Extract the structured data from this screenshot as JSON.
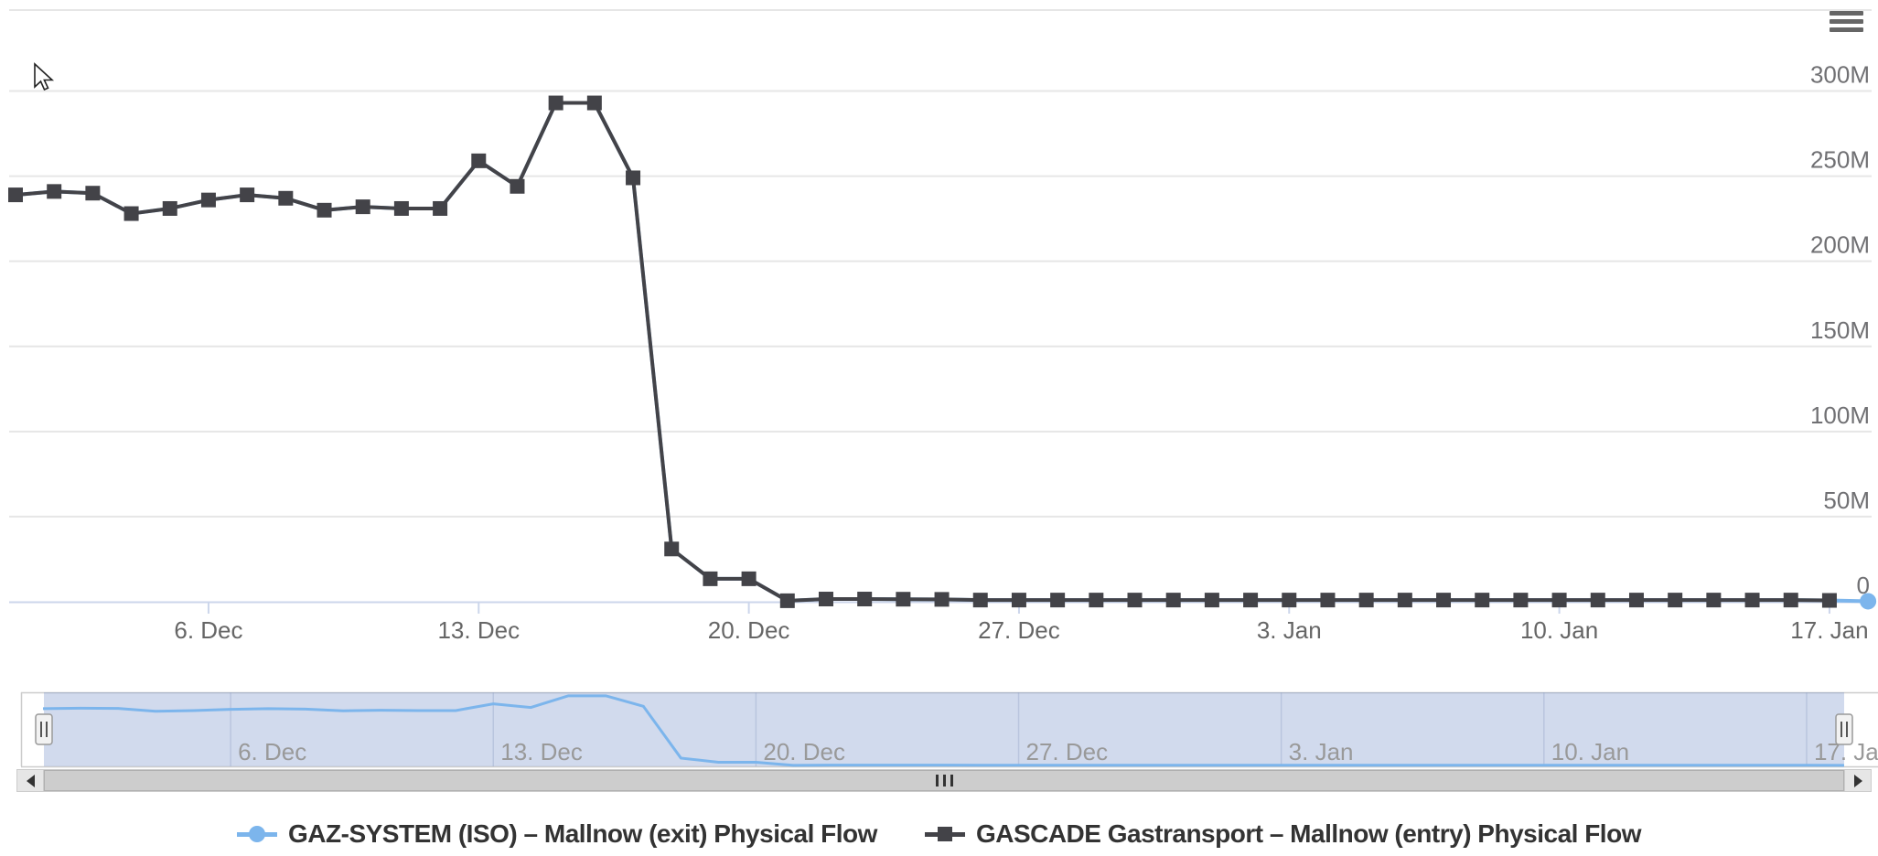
{
  "chart": {
    "export_menu_icon": "hamburger-menu-icon"
  },
  "chart_data": {
    "type": "line",
    "title": "",
    "unit_suffix": "M",
    "grid": true,
    "legend_position": "bottom-center",
    "x_dates": [
      "1. Dec",
      "2. Dec",
      "3. Dec",
      "4. Dec",
      "5. Dec",
      "6. Dec",
      "7. Dec",
      "8. Dec",
      "9. Dec",
      "10. Dec",
      "11. Dec",
      "12. Dec",
      "13. Dec",
      "14. Dec",
      "15. Dec",
      "16. Dec",
      "17. Dec",
      "18. Dec",
      "19. Dec",
      "20. Dec",
      "21. Dec",
      "22. Dec",
      "23. Dec",
      "24. Dec",
      "25. Dec",
      "26. Dec",
      "27. Dec",
      "28. Dec",
      "29. Dec",
      "30. Dec",
      "31. Dec",
      "1. Jan",
      "2. Jan",
      "3. Jan",
      "4. Jan",
      "5. Jan",
      "6. Jan",
      "7. Jan",
      "8. Jan",
      "9. Jan",
      "10. Jan",
      "11. Jan",
      "12. Jan",
      "13. Jan",
      "14. Jan",
      "15. Jan",
      "16. Jan",
      "17. Jan",
      "18. Jan"
    ],
    "xaxis": {
      "tick_labels": [
        "6. Dec",
        "13. Dec",
        "20. Dec",
        "27. Dec",
        "3. Jan",
        "10. Jan",
        "17. Jan"
      ],
      "tick_day_indices": [
        5,
        12,
        19,
        26,
        33,
        40,
        47
      ]
    },
    "yaxis": {
      "tick_labels": [
        "0",
        "50M",
        "100M",
        "150M",
        "200M",
        "250M",
        "300M"
      ],
      "tick_values_millions": [
        0,
        50,
        100,
        150,
        200,
        250,
        300
      ],
      "range_millions": [
        0,
        347
      ]
    },
    "series": [
      {
        "name": "GAZ-SYSTEM (ISO) – Mallnow (exit) Physical Flow",
        "color": "#7cb5ec",
        "marker": "circle",
        "marker_visible": "last-point-only",
        "values_millions": [
          239,
          241,
          240,
          228,
          231,
          236,
          239,
          237,
          230,
          232,
          231,
          231,
          259,
          244,
          293,
          293,
          249,
          31,
          13.5,
          13.5,
          0.6,
          1.6,
          1.6,
          1.5,
          1.4,
          1,
          1,
          1,
          1,
          1,
          1,
          1,
          1,
          1,
          1,
          1,
          1,
          1,
          1,
          1,
          1,
          1,
          1,
          1,
          1,
          1,
          1,
          0.8,
          0.3
        ]
      },
      {
        "name": "GASCADE Gastransport – Mallnow (entry) Physical Flow",
        "color": "#434348",
        "marker": "square",
        "marker_visible": "all",
        "values_millions": [
          239,
          241,
          240,
          228,
          231,
          236,
          239,
          237,
          230,
          232,
          231,
          231,
          259,
          244,
          293,
          293,
          249,
          31,
          13.5,
          13.5,
          0.6,
          1.6,
          1.6,
          1.5,
          1.4,
          1,
          1,
          1,
          1,
          1,
          1,
          1,
          1,
          1,
          1,
          1,
          1,
          1,
          1,
          1,
          1,
          1,
          1,
          1,
          1,
          1,
          1,
          0.8,
          null
        ]
      }
    ]
  },
  "navigator": {
    "tick_labels": [
      "6. Dec",
      "13. Dec",
      "20. Dec",
      "27. Dec",
      "3. Jan",
      "10. Jan",
      "17. Jan"
    ],
    "shown_series": "GAZ-SYSTEM (ISO) – Mallnow (exit) Physical Flow",
    "mask_color": "rgba(102,133,194,0.3)",
    "handle_icon": "drag-handle-icon"
  },
  "scrollbar": {
    "left_arrow_icon": "left-arrow-icon",
    "right_arrow_icon": "right-arrow-icon",
    "grip_icon": "grip-icon"
  },
  "colors": {
    "series_blue": "#7cb5ec",
    "series_black": "#434348",
    "grid_line": "#e6e6e6",
    "axis_line": "#ccd6eb",
    "axis_label": "#707073",
    "x_label": "#666666",
    "nav_label": "#999999",
    "legend_text": "#333333"
  }
}
